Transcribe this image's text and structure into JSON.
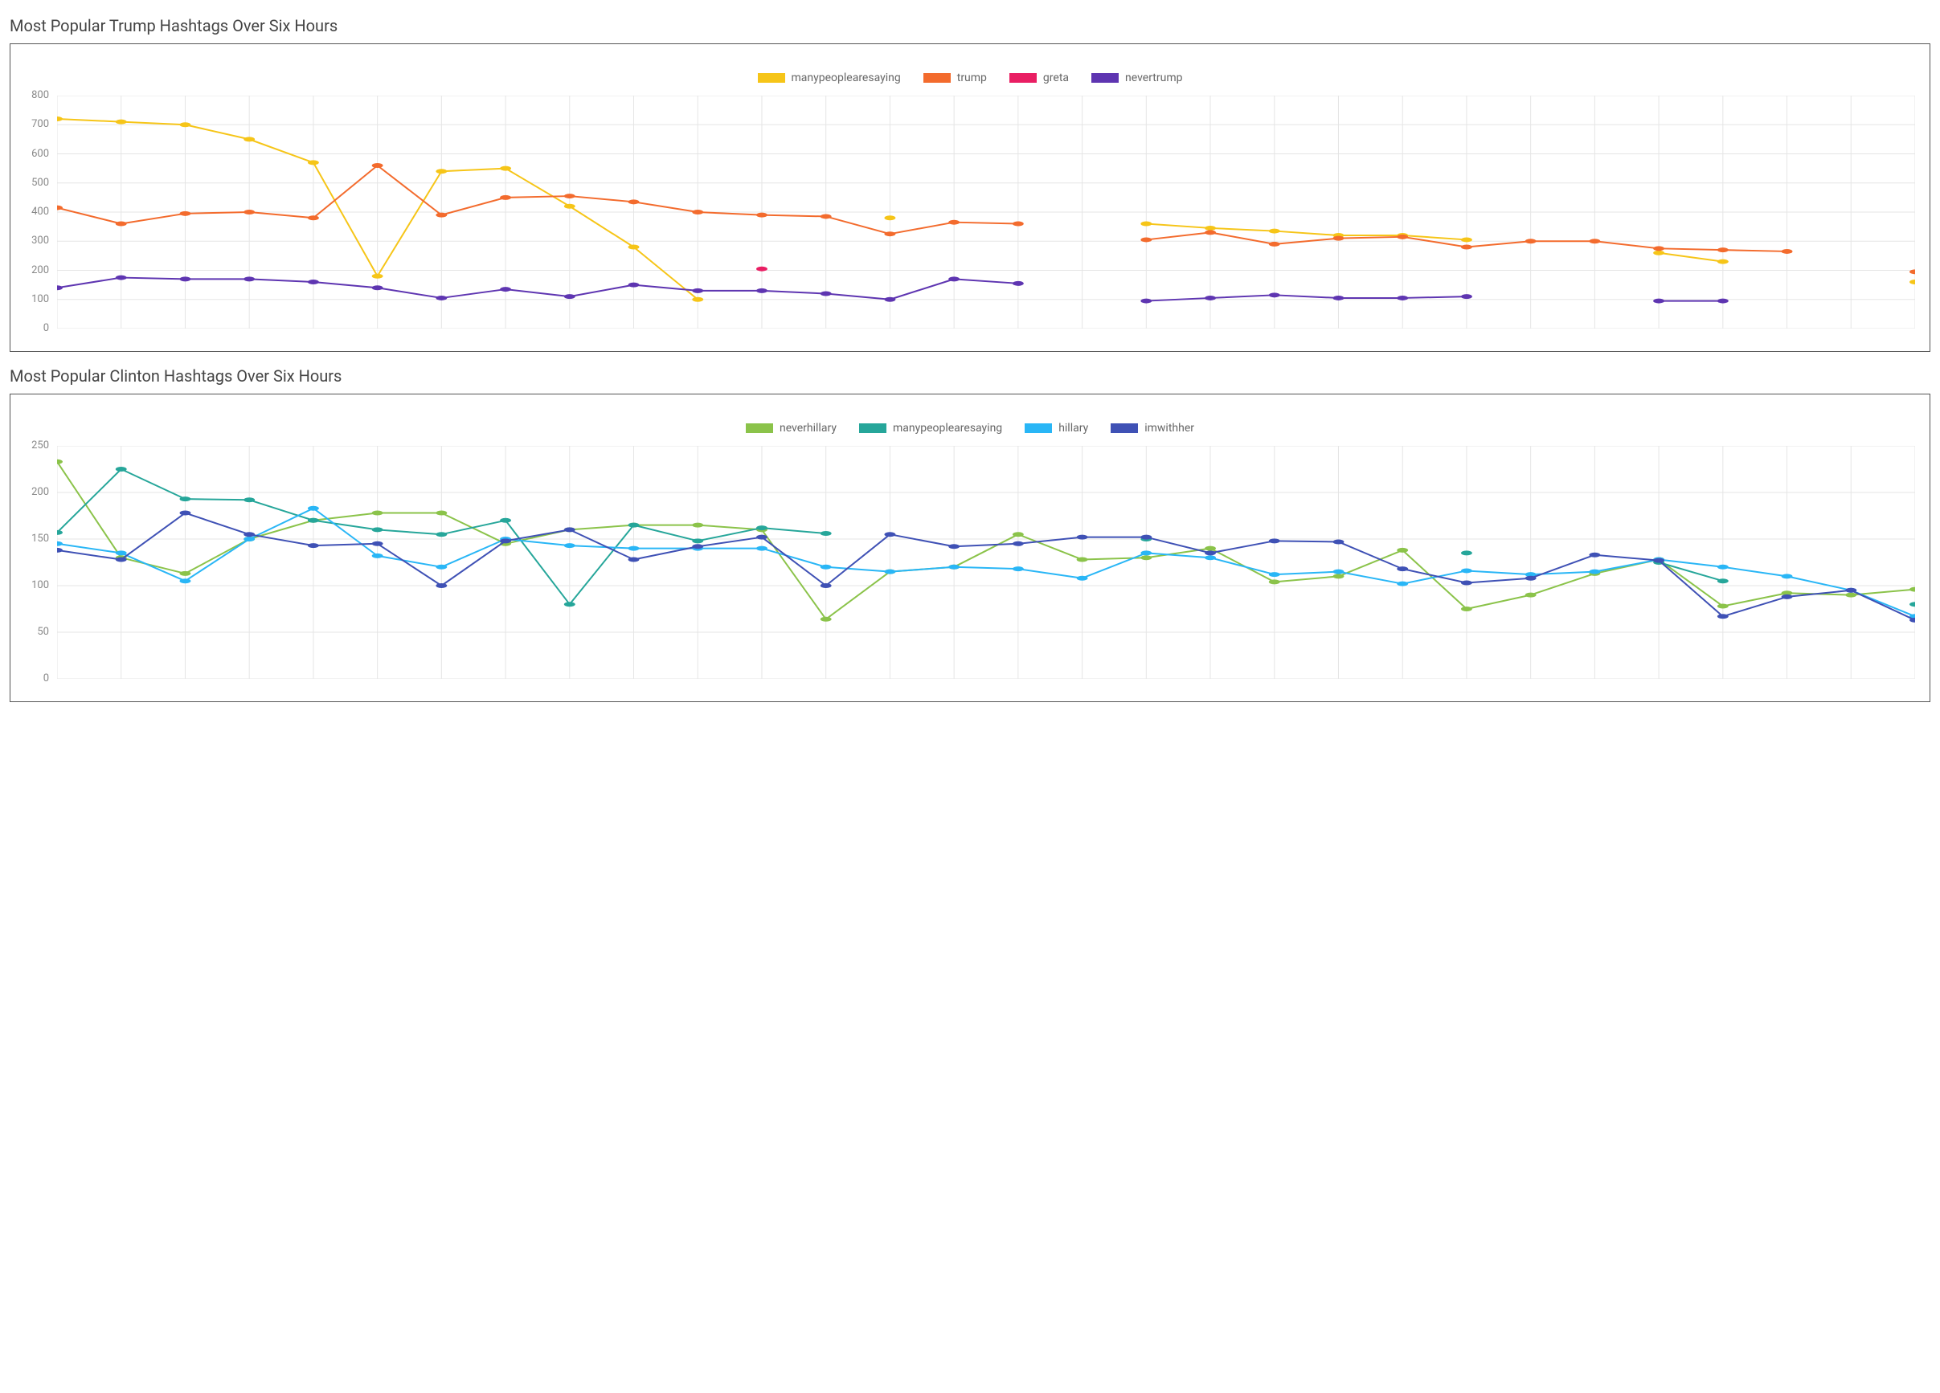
{
  "charts": [
    {
      "title": "Most Popular Trump Hashtags Over Six Hours",
      "type": "line",
      "ylim": [
        0,
        800
      ],
      "ytick_step": 100,
      "x_count": 30,
      "background_color": "#ffffff",
      "border_color": "#555555",
      "grid_color": "#e5e5e5",
      "axis_label_color": "#888888",
      "axis_label_fontsize": 13,
      "title_fontsize": 20,
      "title_color": "#444444",
      "legend_fontsize": 14,
      "legend_color": "#666666",
      "line_width": 2,
      "marker_radius": 3,
      "series": [
        {
          "label": "manypeoplearesaying",
          "color": "#f6c518",
          "values": [
            720,
            710,
            700,
            650,
            570,
            180,
            540,
            550,
            420,
            280,
            100,
            null,
            null,
            380,
            null,
            null,
            null,
            360,
            345,
            335,
            320,
            320,
            305,
            null,
            null,
            260,
            230,
            null,
            null,
            160
          ]
        },
        {
          "label": "trump",
          "color": "#f36b2d",
          "values": [
            415,
            360,
            395,
            400,
            380,
            560,
            390,
            450,
            455,
            435,
            400,
            390,
            385,
            325,
            365,
            360,
            null,
            305,
            330,
            290,
            310,
            315,
            280,
            300,
            300,
            275,
            270,
            265,
            null,
            195
          ]
        },
        {
          "label": "greta",
          "color": "#e91e63",
          "values": [
            null,
            null,
            null,
            null,
            null,
            null,
            null,
            null,
            null,
            null,
            null,
            205,
            null,
            null,
            null,
            null,
            null,
            null,
            null,
            null,
            null,
            null,
            null,
            null,
            null,
            null,
            null,
            null,
            null,
            null
          ]
        },
        {
          "label": "nevertrump",
          "color": "#5e35b1",
          "values": [
            140,
            175,
            170,
            170,
            160,
            140,
            105,
            135,
            110,
            150,
            130,
            130,
            120,
            100,
            170,
            155,
            null,
            95,
            105,
            115,
            105,
            105,
            110,
            null,
            null,
            95,
            95,
            null,
            null,
            null
          ]
        }
      ]
    },
    {
      "title": "Most Popular Clinton Hashtags Over Six Hours",
      "type": "line",
      "ylim": [
        0,
        250
      ],
      "ytick_step": 50,
      "x_count": 30,
      "background_color": "#ffffff",
      "border_color": "#555555",
      "grid_color": "#e5e5e5",
      "axis_label_color": "#888888",
      "axis_label_fontsize": 13,
      "title_fontsize": 20,
      "title_color": "#444444",
      "legend_fontsize": 14,
      "legend_color": "#666666",
      "line_width": 2,
      "marker_radius": 3,
      "series": [
        {
          "label": "neverhillary",
          "color": "#8bc34a",
          "values": [
            233,
            130,
            113,
            150,
            170,
            178,
            178,
            145,
            160,
            165,
            165,
            160,
            64,
            115,
            120,
            155,
            128,
            130,
            140,
            104,
            110,
            138,
            75,
            90,
            113,
            128,
            78,
            92,
            90,
            96
          ]
        },
        {
          "label": "manypeoplearesaying",
          "color": "#26a69a",
          "values": [
            157,
            225,
            193,
            192,
            170,
            160,
            155,
            170,
            80,
            165,
            148,
            162,
            156,
            null,
            null,
            null,
            null,
            150,
            null,
            null,
            null,
            null,
            135,
            null,
            null,
            125,
            105,
            null,
            null,
            80
          ]
        },
        {
          "label": "hillary",
          "color": "#29b6f6",
          "values": [
            145,
            135,
            105,
            150,
            183,
            132,
            120,
            150,
            143,
            140,
            140,
            140,
            120,
            115,
            120,
            118,
            108,
            135,
            130,
            112,
            115,
            102,
            116,
            112,
            115,
            128,
            120,
            110,
            95,
            67
          ]
        },
        {
          "label": "imwithher",
          "color": "#3f51b5",
          "values": [
            138,
            128,
            178,
            155,
            143,
            145,
            100,
            148,
            160,
            128,
            142,
            152,
            100,
            155,
            142,
            145,
            152,
            152,
            135,
            148,
            147,
            118,
            103,
            108,
            133,
            127,
            67,
            88,
            95,
            63
          ]
        }
      ]
    }
  ]
}
